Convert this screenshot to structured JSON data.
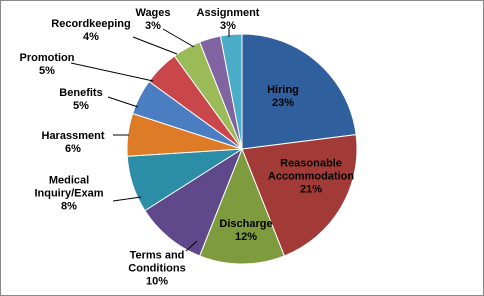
{
  "chart_data": {
    "type": "pie",
    "categories": [
      "Hiring",
      "Reasonable Accommodation",
      "Discharge",
      "Terms and Conditions",
      "Medical Inquiry/Exam",
      "Harassment",
      "Benefits",
      "Promotion",
      "Recordkeeping",
      "Wages",
      "Assignment"
    ],
    "values": [
      23,
      21,
      12,
      10,
      8,
      6,
      5,
      5,
      4,
      3,
      3
    ],
    "value_labels": [
      "23%",
      "21%",
      "12%",
      "10%",
      "8%",
      "6%",
      "5%",
      "5%",
      "4%",
      "3%",
      "3%"
    ],
    "colors": [
      "#2f5f9c",
      "#a23b38",
      "#7e9b3e",
      "#60498a",
      "#2b8da6",
      "#dd7b27",
      "#4a7dc2",
      "#c9474a",
      "#9bbb59",
      "#8064a2",
      "#4aacc6"
    ]
  }
}
